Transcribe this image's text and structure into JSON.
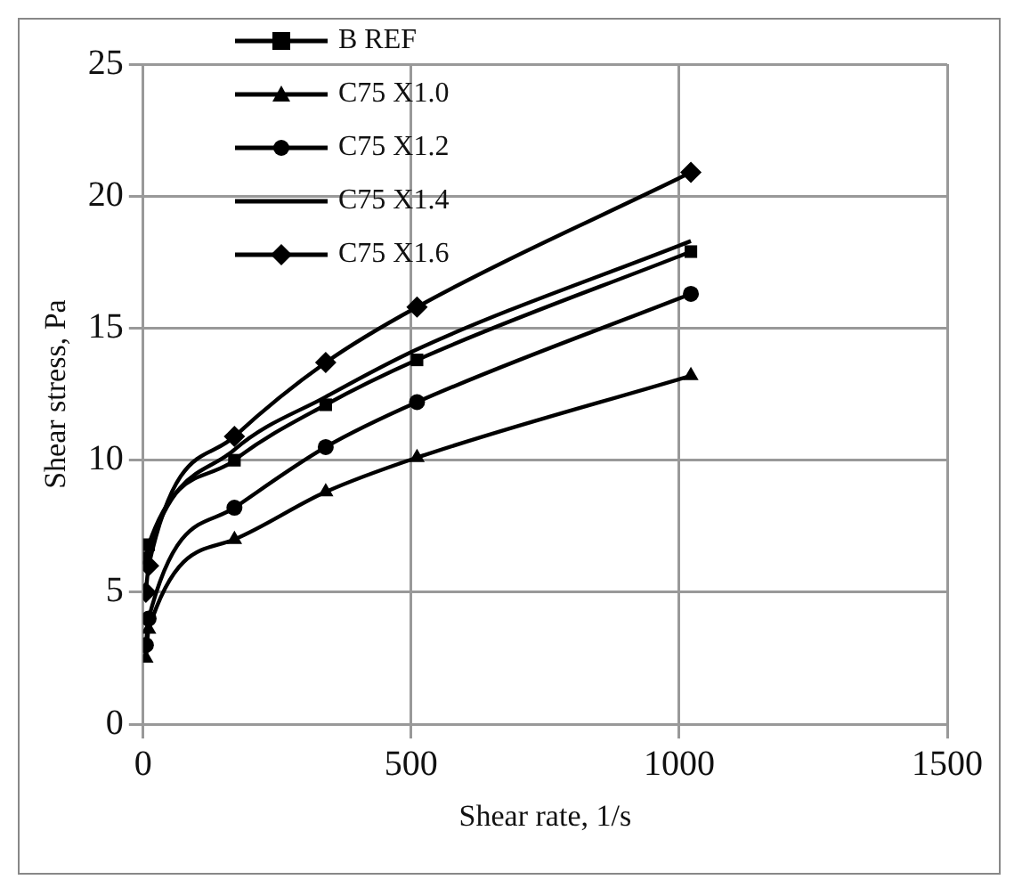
{
  "chart_data": {
    "type": "line",
    "xlabel": "Shear rate, 1/s",
    "ylabel": "Shear stress, Pa",
    "x": [
      5.1,
      10.2,
      170.3,
      340.6,
      510.9,
      1021.8
    ],
    "series": [
      {
        "name": "B REF",
        "color": "#000000",
        "marker": "square",
        "values": [
          6.3,
          6.8,
          10.0,
          12.1,
          13.8,
          17.9
        ]
      },
      {
        "name": "C75 X1.0",
        "color": "#000000",
        "marker": "triangle",
        "values": [
          2.5,
          3.6,
          7.0,
          8.8,
          10.1,
          13.2
        ]
      },
      {
        "name": "C75 X1.2",
        "color": "#000000",
        "marker": "circle",
        "values": [
          3.0,
          4.0,
          8.2,
          10.5,
          12.2,
          16.3
        ]
      },
      {
        "name": "C75 X1.4",
        "color": "#000000",
        "marker": "none",
        "values": [
          6.1,
          6.6,
          10.4,
          12.4,
          14.2,
          18.3
        ]
      },
      {
        "name": "C75 X1.6",
        "color": "#000000",
        "marker": "diamond",
        "values": [
          5.0,
          6.0,
          10.9,
          13.7,
          15.8,
          20.9
        ]
      }
    ],
    "xlim": [
      0,
      1500
    ],
    "xticks": [
      0,
      500,
      1000,
      1500
    ],
    "ylim": [
      0,
      25
    ],
    "yticks": [
      0,
      5,
      10,
      15,
      20,
      25
    ],
    "grid": true,
    "legend": "top left"
  }
}
